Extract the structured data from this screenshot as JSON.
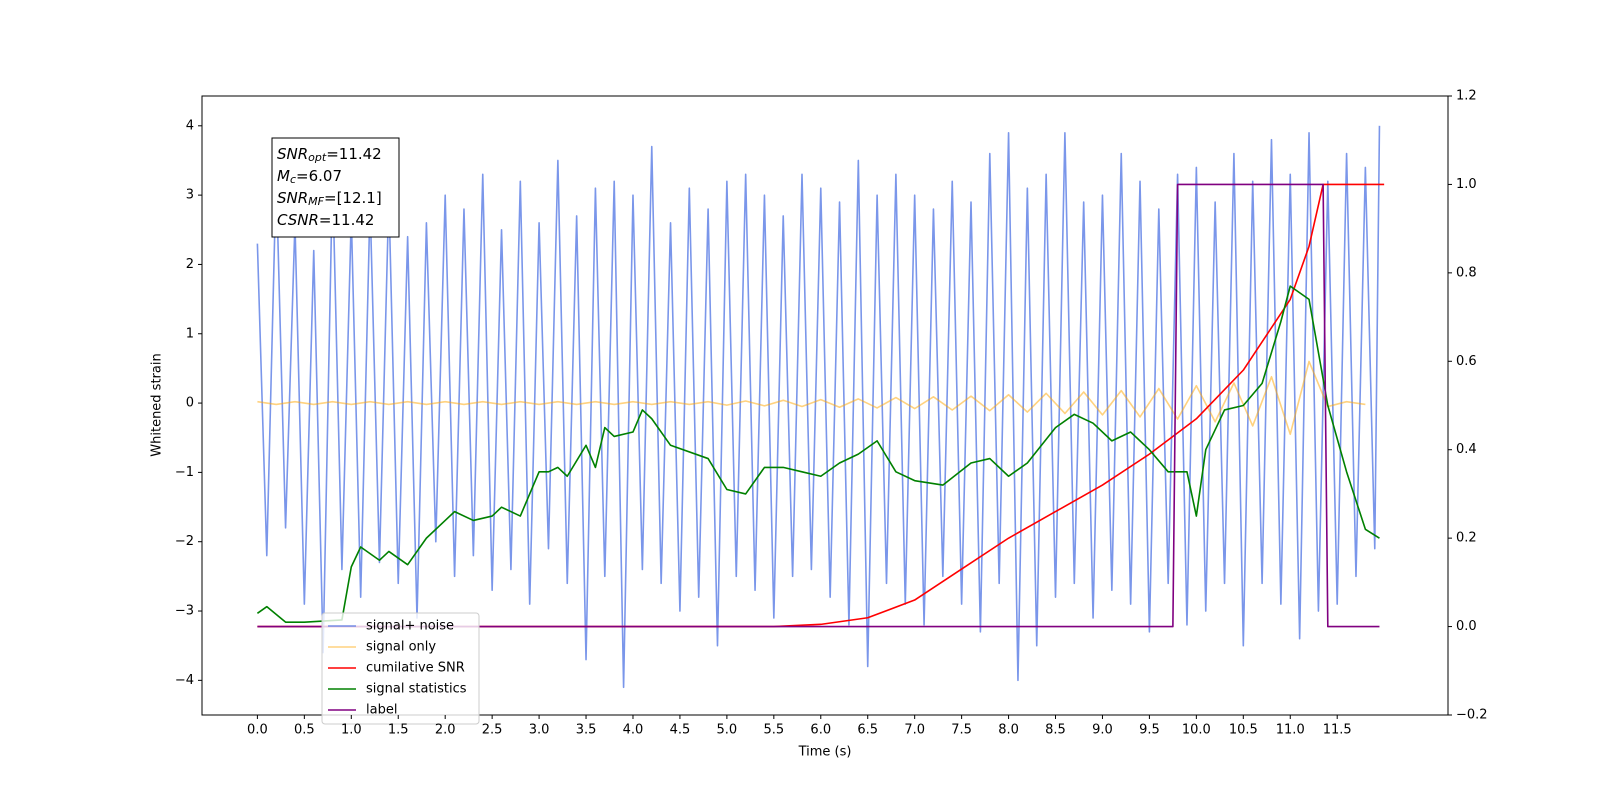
{
  "chart_data": {
    "type": "line",
    "xlabel": "Time (s)",
    "ylabel": "Whitened strain",
    "xlim": [
      -0.59,
      12.68
    ],
    "ylim": [
      -4.5,
      4.43
    ],
    "y2lim": [
      -0.2,
      1.2
    ],
    "xticks": [
      {
        "value": 0,
        "label": "0.0"
      },
      0.5,
      {
        "value": 1,
        "label": "1.0"
      },
      1.5,
      {
        "value": 2,
        "label": "2.0"
      },
      2.5,
      {
        "value": 3,
        "label": "3.0"
      },
      3.5,
      {
        "value": 4,
        "label": "4.0"
      },
      4.5,
      {
        "value": 5,
        "label": "5.0"
      },
      5.5,
      {
        "value": 6,
        "label": "6.0"
      },
      6.5,
      {
        "value": 7,
        "label": "7.0"
      },
      7.5,
      {
        "value": 8,
        "label": "8.0"
      },
      8.5,
      {
        "value": 9,
        "label": "9.0"
      },
      9.5,
      {
        "value": 10,
        "label": "10.0"
      },
      10.5,
      {
        "value": 11,
        "label": "11.0"
      },
      11.5
    ],
    "yticks": [
      {
        "value": -4,
        "label": "−4"
      },
      {
        "value": -3,
        "label": "−3"
      },
      {
        "value": -2,
        "label": "−2"
      },
      {
        "value": -1,
        "label": "−1"
      },
      0,
      1,
      2,
      3,
      4
    ],
    "y2ticks": [
      {
        "value": -0.2,
        "label": "−0.2"
      },
      {
        "value": 0,
        "label": "0.0"
      },
      0.2,
      0.4,
      0.6,
      0.8,
      {
        "value": 1,
        "label": "1.0"
      },
      1.2
    ],
    "grid": false,
    "legend_loc": "lower left",
    "annotation": [
      {
        "base": "SNR",
        "sub": "opt",
        "rest": "=11.42"
      },
      {
        "base": "M",
        "sub": "c",
        "rest": "=6.07"
      },
      {
        "base": "SNR",
        "sub": "MF",
        "rest": "=[12.1]"
      },
      {
        "base": "CSNR",
        "rest": "=11.42"
      }
    ],
    "series": [
      {
        "name": "signal+ noise",
        "color": "#4169e1",
        "opacity": 0.7,
        "x": [
          0,
          0.1,
          0.2,
          0.3,
          0.4,
          0.5,
          0.6,
          0.7,
          0.8,
          0.9,
          1,
          1.1,
          1.2,
          1.3,
          1.4,
          1.5,
          1.6,
          1.7,
          1.8,
          1.9,
          2,
          2.1,
          2.2,
          2.3,
          2.4,
          2.5,
          2.6,
          2.7,
          2.8,
          2.9,
          3,
          3.1,
          3.2,
          3.3,
          3.4,
          3.5,
          3.6,
          3.7,
          3.8,
          3.9,
          4,
          4.1,
          4.2,
          4.3,
          4.4,
          4.5,
          4.6,
          4.7,
          4.8,
          4.9,
          5,
          5.1,
          5.2,
          5.3,
          5.4,
          5.5,
          5.6,
          5.7,
          5.8,
          5.9,
          6,
          6.1,
          6.2,
          6.3,
          6.4,
          6.5,
          6.6,
          6.7,
          6.8,
          6.9,
          7,
          7.1,
          7.2,
          7.3,
          7.4,
          7.5,
          7.6,
          7.7,
          7.8,
          7.9,
          8,
          8.1,
          8.2,
          8.3,
          8.4,
          8.5,
          8.6,
          8.7,
          8.8,
          8.9,
          9,
          9.1,
          9.2,
          9.3,
          9.4,
          9.5,
          9.6,
          9.7,
          9.8,
          9.9,
          10,
          10.1,
          10.2,
          10.3,
          10.4,
          10.5,
          10.6,
          10.7,
          10.8,
          10.9,
          11,
          11.1,
          11.2,
          11.3,
          11.4,
          11.5,
          11.6,
          11.7,
          11.8,
          11.9,
          11.95
        ],
        "values": [
          2.3,
          -2.2,
          3.3,
          -1.8,
          2.6,
          -2.9,
          2.2,
          -3.6,
          3.3,
          -2.4,
          2.7,
          -2.8,
          2.9,
          -2.3,
          3.0,
          -2.6,
          2.4,
          -3.1,
          2.6,
          -2.0,
          3.0,
          -2.5,
          2.8,
          -2.2,
          3.3,
          -2.7,
          2.5,
          -2.4,
          3.2,
          -2.9,
          2.6,
          -2.1,
          3.5,
          -2.6,
          2.7,
          -3.7,
          3.1,
          -2.5,
          3.2,
          -4.1,
          3.0,
          -2.4,
          3.7,
          -2.6,
          2.6,
          -3.0,
          3.1,
          -2.8,
          2.8,
          -3.5,
          3.2,
          -2.5,
          3.3,
          -2.7,
          3.0,
          -3.1,
          2.7,
          -2.5,
          3.3,
          -2.4,
          3.1,
          -2.8,
          2.9,
          -3.2,
          3.5,
          -3.8,
          3.0,
          -2.6,
          3.3,
          -2.9,
          3.0,
          -3.2,
          2.8,
          -2.5,
          3.2,
          -2.9,
          2.9,
          -3.3,
          3.6,
          -2.6,
          3.9,
          -4.0,
          3.1,
          -3.5,
          3.3,
          -2.8,
          3.9,
          -2.6,
          2.9,
          -3.1,
          3.0,
          -2.7,
          3.6,
          -2.9,
          3.2,
          -3.3,
          2.8,
          -2.6,
          3.3,
          -3.2,
          3.4,
          -3.0,
          2.9,
          -2.6,
          3.6,
          -3.5,
          3.2,
          -2.6,
          3.8,
          -2.9,
          3.3,
          -3.4,
          3.9,
          -3.0,
          3.2,
          -2.9,
          3.6,
          -2.5,
          3.4,
          -2.1,
          4.0
        ]
      },
      {
        "name": "signal only",
        "color": "#ffa500",
        "opacity": 0.5,
        "x": [
          0,
          0.2,
          0.4,
          0.6,
          0.8,
          1,
          1.2,
          1.4,
          1.6,
          1.8,
          2,
          2.2,
          2.4,
          2.6,
          2.8,
          3,
          3.2,
          3.4,
          3.6,
          3.8,
          4,
          4.2,
          4.4,
          4.6,
          4.8,
          5,
          5.2,
          5.4,
          5.6,
          5.8,
          6,
          6.2,
          6.4,
          6.6,
          6.8,
          7,
          7.2,
          7.4,
          7.6,
          7.8,
          8,
          8.2,
          8.4,
          8.6,
          8.8,
          9,
          9.2,
          9.4,
          9.6,
          9.8,
          10,
          10.2,
          10.4,
          10.6,
          10.8,
          11,
          11.2,
          11.4,
          11.6,
          11.8
        ],
        "values": [
          0.02,
          -0.02,
          0.02,
          -0.02,
          0.02,
          -0.02,
          0.02,
          -0.02,
          0.02,
          -0.02,
          0.02,
          -0.02,
          0.02,
          -0.02,
          0.02,
          -0.02,
          0.02,
          -0.02,
          0.02,
          -0.02,
          0.02,
          -0.02,
          0.02,
          -0.02,
          0.02,
          -0.03,
          0.03,
          -0.04,
          0.04,
          -0.05,
          0.05,
          -0.06,
          0.06,
          -0.07,
          0.08,
          -0.08,
          0.09,
          -0.1,
          0.1,
          -0.11,
          0.12,
          -0.13,
          0.14,
          -0.15,
          0.16,
          -0.17,
          0.18,
          -0.2,
          0.21,
          -0.23,
          0.25,
          -0.27,
          0.29,
          -0.33,
          0.38,
          -0.45,
          0.6,
          -0.05,
          0.02,
          -0.02
        ]
      },
      {
        "name": "cumilative SNR",
        "color": "#ff0000",
        "axis": "y2",
        "x": [
          0,
          5.5,
          6,
          6.5,
          7,
          7.5,
          8,
          8.5,
          9,
          9.5,
          10,
          10.5,
          11,
          11.2,
          11.35,
          12
        ],
        "values": [
          0,
          0,
          0.005,
          0.02,
          0.06,
          0.13,
          0.2,
          0.26,
          0.32,
          0.39,
          0.47,
          0.58,
          0.74,
          0.86,
          1,
          1
        ]
      },
      {
        "name": "signal statistics",
        "color": "#008000",
        "axis": "y2",
        "x": [
          0,
          0.1,
          0.3,
          0.5,
          0.9,
          1,
          1.1,
          1.3,
          1.4,
          1.6,
          1.8,
          2,
          2.1,
          2.3,
          2.5,
          2.6,
          2.8,
          3,
          3.1,
          3.2,
          3.3,
          3.5,
          3.6,
          3.7,
          3.8,
          4,
          4.1,
          4.2,
          4.4,
          4.8,
          5,
          5.2,
          5.4,
          5.6,
          5.8,
          6,
          6.2,
          6.4,
          6.6,
          6.8,
          7,
          7.3,
          7.6,
          7.8,
          8,
          8.2,
          8.5,
          8.7,
          8.9,
          9.1,
          9.3,
          9.5,
          9.7,
          9.9,
          10,
          10.1,
          10.3,
          10.5,
          10.7,
          10.9,
          11,
          11.2,
          11.4,
          11.6,
          11.8,
          11.95
        ],
        "values": [
          0.03,
          0.045,
          0.01,
          0.01,
          0.015,
          0.135,
          0.18,
          0.15,
          0.17,
          0.14,
          0.2,
          0.24,
          0.26,
          0.24,
          0.25,
          0.27,
          0.25,
          0.35,
          0.35,
          0.36,
          0.34,
          0.41,
          0.36,
          0.45,
          0.43,
          0.44,
          0.49,
          0.47,
          0.41,
          0.38,
          0.31,
          0.3,
          0.36,
          0.36,
          0.35,
          0.34,
          0.37,
          0.39,
          0.42,
          0.35,
          0.33,
          0.32,
          0.37,
          0.38,
          0.34,
          0.37,
          0.45,
          0.48,
          0.46,
          0.42,
          0.44,
          0.4,
          0.35,
          0.35,
          0.25,
          0.4,
          0.49,
          0.5,
          0.55,
          0.69,
          0.77,
          0.74,
          0.5,
          0.35,
          0.22,
          0.2
        ]
      },
      {
        "name": "label",
        "color": "#800080",
        "axis": "y2",
        "x": [
          0,
          9.75,
          9.8,
          11.35,
          11.4,
          11.95
        ],
        "values": [
          0,
          0,
          1,
          1,
          0,
          0
        ]
      }
    ]
  }
}
